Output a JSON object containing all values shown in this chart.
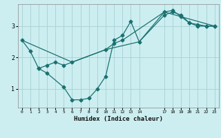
{
  "xlabel": "Humidex (Indice chaleur)",
  "bg_color": "#cceef0",
  "grid_color": "#aad4d8",
  "line_color": "#1a7070",
  "line1_x": [
    0,
    1,
    2,
    3,
    5,
    6,
    7,
    8,
    9,
    10,
    11,
    12,
    13,
    14,
    17,
    18,
    19,
    20,
    21,
    22,
    23
  ],
  "line1_y": [
    2.55,
    2.2,
    1.65,
    1.5,
    1.05,
    0.65,
    0.65,
    0.7,
    1.0,
    1.4,
    2.55,
    2.7,
    3.15,
    2.5,
    3.35,
    3.45,
    3.35,
    3.1,
    3.05,
    3.0,
    3.0
  ],
  "line2_x": [
    2,
    3,
    4,
    5,
    6,
    10,
    11,
    12,
    17,
    18,
    19,
    20,
    21,
    22,
    23
  ],
  "line2_y": [
    1.65,
    1.75,
    1.85,
    1.75,
    1.85,
    2.25,
    2.45,
    2.55,
    3.45,
    3.5,
    3.3,
    3.1,
    3.0,
    3.0,
    3.0
  ],
  "line3_x": [
    0,
    6,
    10,
    14,
    17,
    23
  ],
  "line3_y": [
    2.55,
    1.85,
    2.25,
    2.5,
    3.45,
    3.0
  ],
  "xlim": [
    -0.5,
    23.5
  ],
  "ylim": [
    0.4,
    3.7
  ],
  "xticks": [
    0,
    1,
    2,
    3,
    4,
    5,
    6,
    7,
    8,
    9,
    10,
    11,
    12,
    13,
    14,
    17,
    18,
    19,
    20,
    21,
    22,
    23
  ],
  "yticks": [
    1,
    2,
    3
  ]
}
